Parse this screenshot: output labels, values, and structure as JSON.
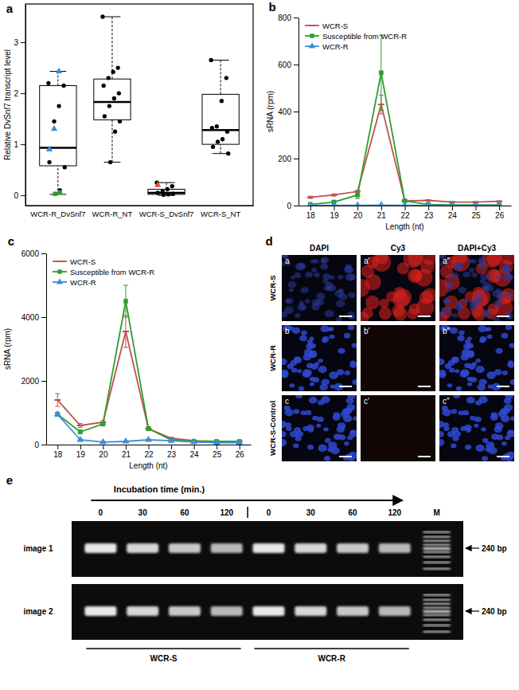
{
  "chart_data": [
    {
      "type": "box",
      "label": "a",
      "ylabel": "Relative DvSnf7 transcript level",
      "categories": [
        "WCR-R_DvSnf7",
        "WCR-R_NT",
        "WCR-S_DvSnf7",
        "WCR-S_NT"
      ],
      "boxes": [
        {
          "low": 0.02,
          "q1": 0.58,
          "median": 0.93,
          "q3": 2.15,
          "high": 2.43
        },
        {
          "low": 0.65,
          "q1": 1.48,
          "median": 1.83,
          "q3": 2.28,
          "high": 3.5
        },
        {
          "low": 0.0,
          "q1": 0.02,
          "median": 0.05,
          "q3": 0.12,
          "high": 0.25
        },
        {
          "low": 0.82,
          "q1": 1.0,
          "median": 1.28,
          "q3": 1.98,
          "high": 2.65
        }
      ],
      "point_groups": [
        {
          "marker": "circle",
          "color": "#000000",
          "values": [
            [
              2.2,
              2.15,
              1.75,
              1.45,
              0.65,
              0.55,
              0.1
            ],
            [
              3.5,
              2.5,
              2.42,
              2.3,
              2.15,
              2.0,
              1.9,
              1.75,
              1.55,
              1.45,
              1.25,
              0.65
            ],
            [
              0.25,
              0.18,
              0.12,
              0.08,
              0.05,
              0.03,
              0.02,
              0.01
            ],
            [
              2.65,
              2.3,
              1.85,
              1.35,
              1.32,
              1.25,
              1.1,
              1.05,
              0.95,
              0.82
            ]
          ]
        },
        {
          "marker": "triangle",
          "color": "#3a8fd9",
          "values": [
            [
              2.43,
              1.3,
              0.9
            ],
            [],
            [],
            []
          ]
        },
        {
          "marker": "triangle",
          "color": "#e0533a",
          "values": [
            [],
            [],
            [
              0.2
            ],
            []
          ]
        },
        {
          "marker": "square",
          "color": "#2e9e2e",
          "values": [
            [
              0.06,
              0.03
            ],
            [],
            [],
            []
          ]
        }
      ],
      "ylim": [
        -0.2,
        3.75
      ],
      "yticks": [
        0,
        1,
        2,
        3
      ]
    },
    {
      "type": "line",
      "label": "b",
      "xlabel": "Length (nt)",
      "ylabel": "sRNA (rpm)",
      "x": [
        18,
        19,
        20,
        21,
        22,
        23,
        24,
        25,
        26
      ],
      "xlim": [
        17.5,
        26.5
      ],
      "xticks": [
        18,
        19,
        20,
        21,
        22,
        23,
        24,
        25,
        26
      ],
      "ylim": [
        0,
        800
      ],
      "yticks": [
        0,
        200,
        400,
        600,
        800
      ],
      "legend": "upper left",
      "series": [
        {
          "name": "WCR-S",
          "color": "#c0504d",
          "marker": "dash",
          "values": [
            35,
            45,
            60,
            430,
            20,
            22,
            15,
            15,
            18
          ],
          "errors": [
            5,
            5,
            5,
            40,
            3,
            3,
            2,
            2,
            2
          ]
        },
        {
          "name": "Susceptible from WCR-R",
          "color": "#2e9e2e",
          "marker": "square",
          "values": [
            5,
            15,
            45,
            565,
            20,
            5,
            3,
            3,
            3
          ],
          "errors": [
            2,
            3,
            15,
            160,
            5,
            2,
            1,
            1,
            1
          ]
        },
        {
          "name": "WCR-R",
          "color": "#3a8fd9",
          "marker": "triangle",
          "values": [
            1,
            1,
            1,
            2,
            1,
            1,
            1,
            1,
            1
          ],
          "errors": [
            1,
            1,
            1,
            1,
            1,
            1,
            1,
            1,
            1
          ]
        }
      ]
    },
    {
      "type": "line",
      "label": "c",
      "xlabel": "Length (nt)",
      "ylabel": "sRNA (rpm)",
      "x": [
        18,
        19,
        20,
        21,
        22,
        23,
        24,
        25,
        26
      ],
      "xlim": [
        17.5,
        26.5
      ],
      "xticks": [
        18,
        19,
        20,
        21,
        22,
        23,
        24,
        25,
        26
      ],
      "ylim": [
        0,
        6000
      ],
      "yticks": [
        0,
        2000,
        4000,
        6000
      ],
      "legend": "upper left",
      "series": [
        {
          "name": "WCR-S",
          "color": "#c0504d",
          "marker": "dash",
          "values": [
            1400,
            600,
            700,
            3550,
            500,
            200,
            120,
            100,
            100
          ],
          "errors": [
            200,
            60,
            60,
            500,
            60,
            30,
            20,
            20,
            20
          ]
        },
        {
          "name": "Susceptible from WCR-R",
          "color": "#2e9e2e",
          "marker": "square",
          "values": [
            950,
            400,
            650,
            4500,
            500,
            150,
            100,
            100,
            100
          ],
          "errors": [
            60,
            50,
            60,
            500,
            50,
            30,
            20,
            20,
            20
          ]
        },
        {
          "name": "WCR-R",
          "color": "#3a8fd9",
          "marker": "triangle",
          "values": [
            950,
            150,
            80,
            100,
            150,
            120,
            80,
            60,
            60
          ],
          "errors": [
            60,
            30,
            20,
            20,
            20,
            20,
            20,
            20,
            20
          ]
        }
      ]
    }
  ],
  "microscopy": {
    "label": "d",
    "columns": [
      "DAPI",
      "Cy3",
      "DAPI+Cy3"
    ],
    "rows": [
      {
        "name": "WCR-S",
        "panels": [
          "a",
          "a′",
          "a″"
        ]
      },
      {
        "name": "WCR-R",
        "panels": [
          "b",
          "b′",
          "b″"
        ]
      },
      {
        "name": "WCR-S-Control",
        "panels": [
          "c",
          "c′",
          "c″"
        ]
      }
    ]
  },
  "gel": {
    "label": "e",
    "title": "Incubation time (min.)",
    "lanes": [
      "0",
      "30",
      "60",
      "120",
      "0",
      "30",
      "60",
      "120"
    ],
    "marker_lane": "M",
    "images": [
      "image 1",
      "image 2"
    ],
    "band_label": "240 bp",
    "groups": [
      "WCR-S",
      "WCR-R"
    ]
  }
}
